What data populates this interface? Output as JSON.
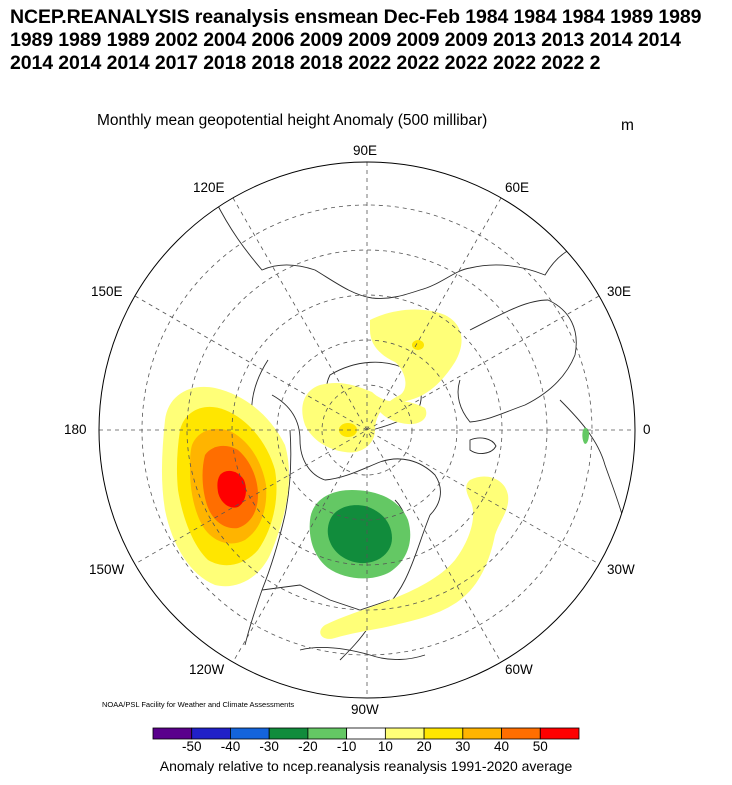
{
  "title": "NCEP.REANALYSIS reanalysis ensmean Dec-Feb 1984 1984 1984 1989 1989 1989 1989 1989 2002 2004 2006 2009 2009 2009 2009 2013 2013 2014 2014 2014 2014 2014 2017 2018 2018 2018 2022 2022 2022 2022 2022 2",
  "subtitle": "Monthly mean geopotential height Anomaly (500 millibar)",
  "unit": "m",
  "credit": "NOAA/PSL Facility for Weather and Climate Assessments",
  "longitude_labels": {
    "top": "90E",
    "upper_left": "120E",
    "upper_right": "60E",
    "left_upper": "150E",
    "right_upper": "30E",
    "left": "180",
    "right": "0",
    "left_lower": "150W",
    "right_lower": "30W",
    "lower_left": "120W",
    "lower_right": "60W",
    "bottom": "90W"
  },
  "colorbar": {
    "tick_labels": [
      "-50",
      "-40",
      "-30",
      "-20",
      "-10",
      "10",
      "20",
      "30",
      "40",
      "50"
    ],
    "colors": [
      "#5a008c",
      "#2020c8",
      "#1464dc",
      "#118c3c",
      "#64c864",
      "#ffffff",
      "#ffff78",
      "#ffe600",
      "#ffb400",
      "#ff6e00",
      "#ff0000"
    ],
    "caption": "Anomaly relative to ncep.reanalysis reanalysis 1991-2020 average"
  },
  "map": {
    "projection": "north polar stereographic",
    "anomaly_features": [
      {
        "name": "North Pacific positive anomaly",
        "max_level": "50"
      },
      {
        "name": "Northeastern Canada negative anomaly",
        "min_level": "-30"
      },
      {
        "name": "Arctic positive anomaly",
        "max_level": "20"
      },
      {
        "name": "Western Atlantic positive anomaly",
        "max_level": "20"
      }
    ]
  }
}
